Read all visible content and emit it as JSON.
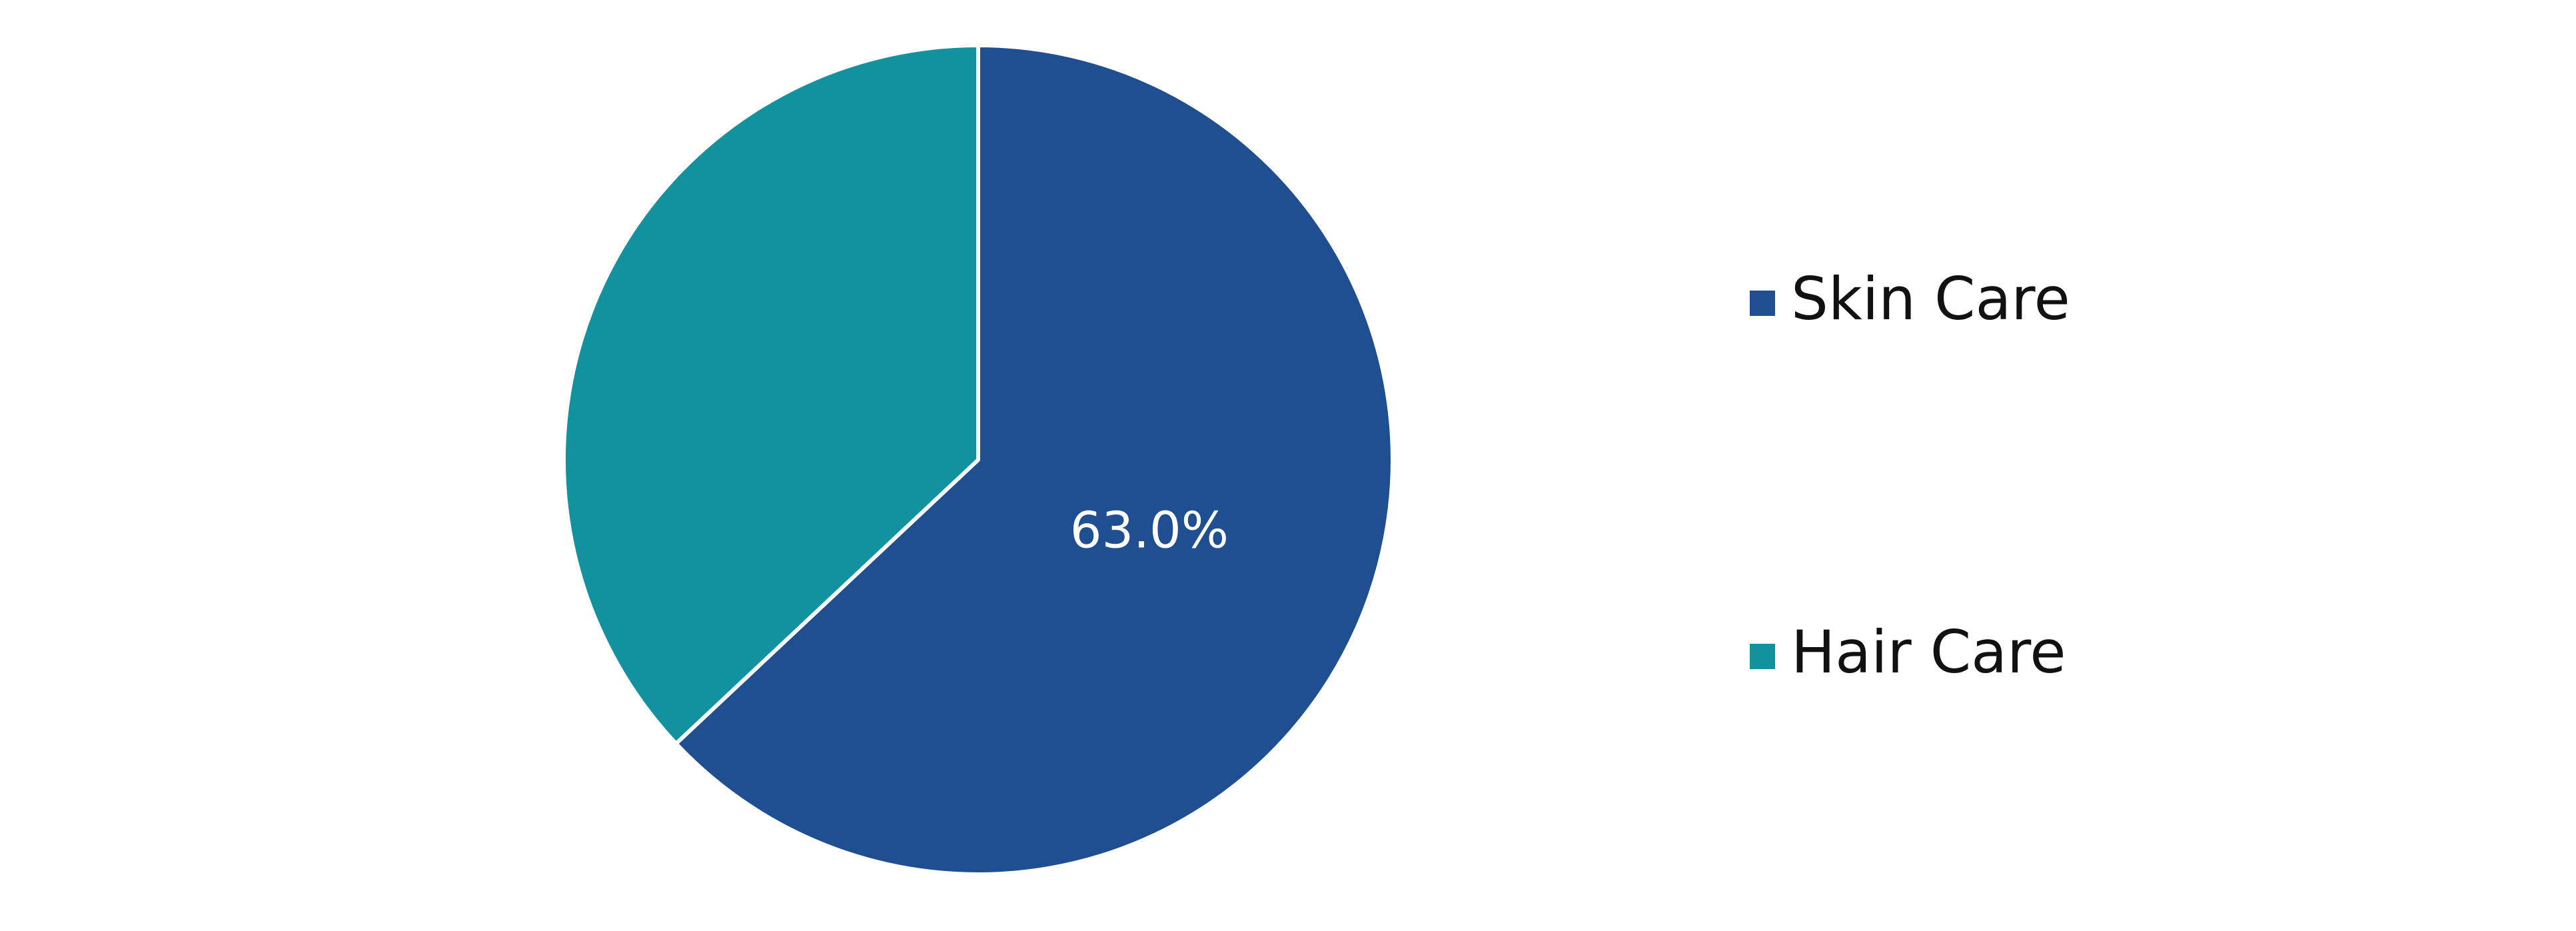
{
  "chart_data": {
    "type": "pie",
    "categories": [
      "Skin Care",
      "Hair Care"
    ],
    "values": [
      63.0,
      37.0
    ],
    "colors": [
      "#1f4e91",
      "#12919f"
    ],
    "data_labels": [
      "63.0%",
      ""
    ],
    "title": "",
    "legend": {
      "placement": "right",
      "entries": [
        "Skin Care",
        "Hair Care"
      ]
    }
  }
}
